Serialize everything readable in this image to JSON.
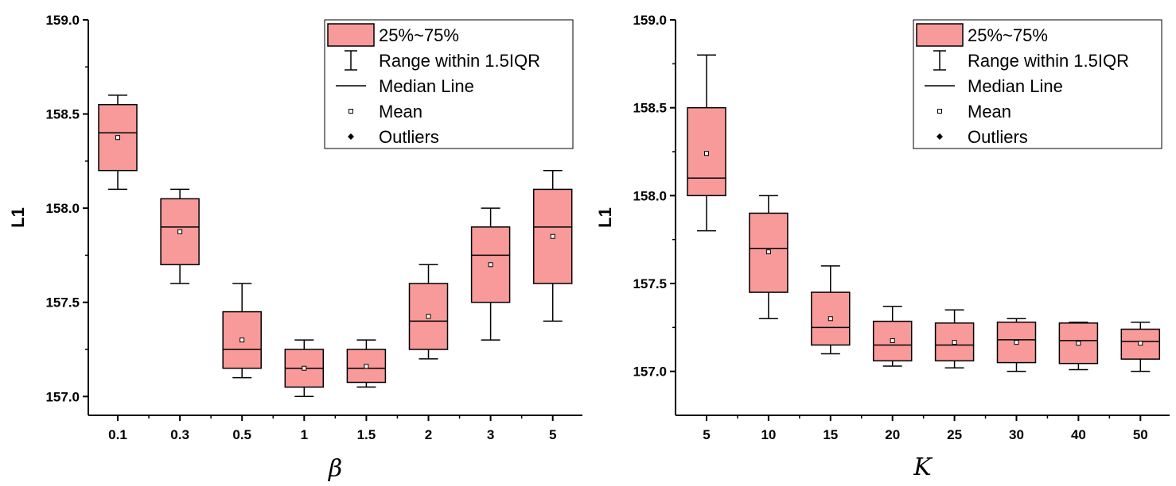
{
  "chart_data": [
    {
      "type": "box",
      "xlabel": "β",
      "ylabel": "L1",
      "ylim": [
        156.9,
        159.0
      ],
      "yticks": [
        "157.0",
        "157.5",
        "158.0",
        "158.5",
        "159.0"
      ],
      "categories": [
        "0.1",
        "0.3",
        "0.5",
        "1",
        "1.5",
        "2",
        "3",
        "5"
      ],
      "boxes": [
        {
          "q1": 158.2,
          "median": 158.4,
          "q3": 158.55,
          "whisker_low": 158.1,
          "whisker_high": 158.6,
          "mean": 158.375
        },
        {
          "q1": 157.7,
          "median": 157.9,
          "q3": 158.05,
          "whisker_low": 157.6,
          "whisker_high": 158.1,
          "mean": 157.875
        },
        {
          "q1": 157.15,
          "median": 157.25,
          "q3": 157.45,
          "whisker_low": 157.1,
          "whisker_high": 157.6,
          "mean": 157.3
        },
        {
          "q1": 157.05,
          "median": 157.15,
          "q3": 157.25,
          "whisker_low": 157.0,
          "whisker_high": 157.3,
          "mean": 157.15
        },
        {
          "q1": 157.075,
          "median": 157.15,
          "q3": 157.25,
          "whisker_low": 157.05,
          "whisker_high": 157.3,
          "mean": 157.16
        },
        {
          "q1": 157.25,
          "median": 157.4,
          "q3": 157.6,
          "whisker_low": 157.2,
          "whisker_high": 157.7,
          "mean": 157.425
        },
        {
          "q1": 157.5,
          "median": 157.75,
          "q3": 157.9,
          "whisker_low": 157.3,
          "whisker_high": 158.0,
          "mean": 157.7
        },
        {
          "q1": 157.6,
          "median": 157.9,
          "q3": 158.1,
          "whisker_low": 157.4,
          "whisker_high": 158.2,
          "mean": 157.85
        }
      ],
      "legend": {
        "position": "top-right",
        "entries": [
          "25%~75%",
          "Range within 1.5IQR",
          "Median Line",
          "Mean",
          "Outliers"
        ]
      }
    },
    {
      "type": "box",
      "xlabel": "K",
      "ylabel": "L1",
      "ylim": [
        156.75,
        159.0
      ],
      "yticks": [
        "157.0",
        "157.5",
        "158.0",
        "158.5",
        "159.0"
      ],
      "categories": [
        "5",
        "10",
        "15",
        "20",
        "25",
        "30",
        "40",
        "50"
      ],
      "boxes": [
        {
          "q1": 158.0,
          "median": 158.1,
          "q3": 158.5,
          "whisker_low": 157.8,
          "whisker_high": 158.8,
          "mean": 158.24
        },
        {
          "q1": 157.45,
          "median": 157.7,
          "q3": 157.9,
          "whisker_low": 157.3,
          "whisker_high": 158.0,
          "mean": 157.68
        },
        {
          "q1": 157.15,
          "median": 157.25,
          "q3": 157.45,
          "whisker_low": 157.1,
          "whisker_high": 157.6,
          "mean": 157.3
        },
        {
          "q1": 157.06,
          "median": 157.15,
          "q3": 157.285,
          "whisker_low": 157.03,
          "whisker_high": 157.37,
          "mean": 157.175
        },
        {
          "q1": 157.06,
          "median": 157.15,
          "q3": 157.275,
          "whisker_low": 157.02,
          "whisker_high": 157.35,
          "mean": 157.165
        },
        {
          "q1": 157.05,
          "median": 157.18,
          "q3": 157.28,
          "whisker_low": 157.0,
          "whisker_high": 157.3,
          "mean": 157.165
        },
        {
          "q1": 157.045,
          "median": 157.175,
          "q3": 157.275,
          "whisker_low": 157.01,
          "whisker_high": 157.28,
          "mean": 157.16
        },
        {
          "q1": 157.07,
          "median": 157.17,
          "q3": 157.24,
          "whisker_low": 157.0,
          "whisker_high": 157.28,
          "mean": 157.16
        }
      ],
      "legend": {
        "position": "top-right",
        "entries": [
          "25%~75%",
          "Range within 1.5IQR",
          "Median Line",
          "Mean",
          "Outliers"
        ]
      }
    }
  ],
  "colors": {
    "box_fill": "#f89a9a",
    "stroke": "#000000"
  }
}
